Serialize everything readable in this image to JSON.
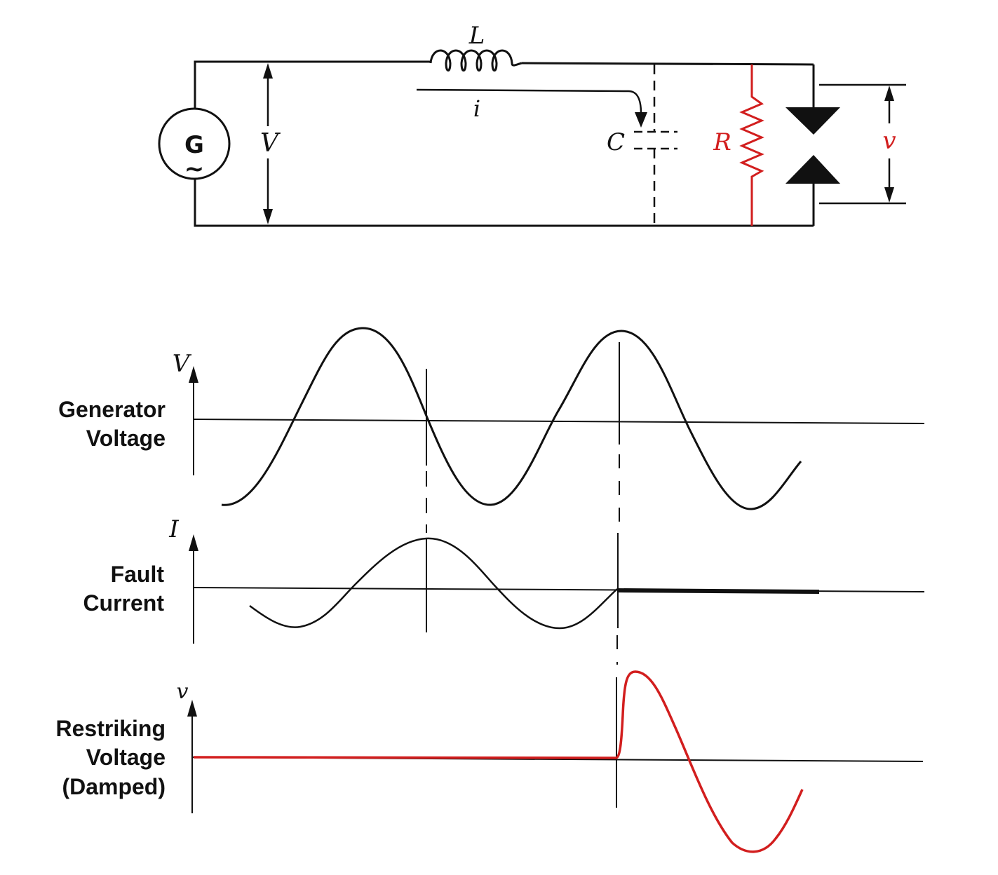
{
  "circuit": {
    "generator_label": "G",
    "generator_symbol": "~",
    "inductor_label": "L",
    "current_label": "i",
    "capacitor_label": "C",
    "resistor_label": "R",
    "supply_voltage_label": "V",
    "breaker_voltage_label": "v"
  },
  "waveforms": [
    {
      "axis_label": "V",
      "title_lines": [
        "Generator",
        "Voltage"
      ]
    },
    {
      "axis_label": "I",
      "title_lines": [
        "Fault",
        "Current"
      ]
    },
    {
      "axis_label": "v",
      "title_lines": [
        "Restriking",
        "Voltage",
        "(Damped)"
      ]
    }
  ],
  "colors": {
    "ink": "#111111",
    "accent": "#d21e1e"
  }
}
